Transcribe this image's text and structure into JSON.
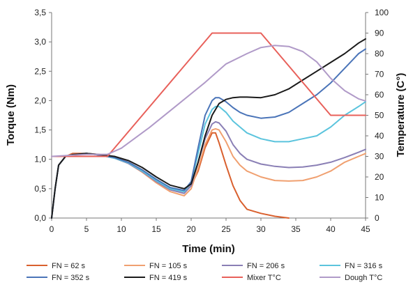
{
  "chart_data": {
    "type": "line",
    "xlabel": "Time (min)",
    "ylabel": "Torque (Nm)",
    "y2label": "Temperature (C°)",
    "xlim": [
      0,
      45
    ],
    "ylim": [
      0,
      3.5
    ],
    "y2lim": [
      0,
      100
    ],
    "x_ticks": [
      "0",
      "5",
      "10",
      "15",
      "20",
      "25",
      "30",
      "35",
      "40",
      "45"
    ],
    "y_ticks": [
      "0,0",
      "0,5",
      "1,0",
      "1,5",
      "2,0",
      "2,5",
      "3,0",
      "3,5"
    ],
    "y2_ticks": [
      "0",
      "10",
      "20",
      "30",
      "40",
      "50",
      "60",
      "70",
      "80",
      "90",
      "100"
    ],
    "grid": false,
    "legend_position": "bottom",
    "series": [
      {
        "name": "FN = 62 s",
        "axis": "left",
        "color": "#d9602e",
        "x": [
          0,
          0.5,
          1,
          2,
          3,
          5,
          7,
          9,
          11,
          13,
          15,
          17,
          19,
          20,
          21,
          22,
          23,
          23.5,
          24,
          25,
          26,
          27,
          28,
          30,
          32,
          34
        ],
        "y": [
          0.0,
          0.5,
          0.9,
          1.05,
          1.1,
          1.1,
          1.08,
          1.04,
          0.95,
          0.82,
          0.65,
          0.5,
          0.45,
          0.55,
          0.8,
          1.2,
          1.45,
          1.45,
          1.28,
          0.9,
          0.55,
          0.3,
          0.15,
          0.08,
          0.03,
          0.0
        ]
      },
      {
        "name": "FN = 105 s",
        "axis": "left",
        "color": "#f0a070",
        "x": [
          0,
          0.5,
          1,
          2,
          3,
          5,
          7,
          9,
          11,
          13,
          15,
          17,
          19,
          20,
          21,
          22,
          23,
          23.5,
          24,
          25,
          26,
          27,
          28,
          30,
          32,
          34,
          36,
          38,
          40,
          42,
          44,
          45
        ],
        "y": [
          0.0,
          0.5,
          0.9,
          1.05,
          1.08,
          1.1,
          1.07,
          1.02,
          0.93,
          0.78,
          0.6,
          0.45,
          0.38,
          0.5,
          0.85,
          1.25,
          1.5,
          1.52,
          1.5,
          1.3,
          1.05,
          0.9,
          0.8,
          0.7,
          0.64,
          0.63,
          0.64,
          0.7,
          0.8,
          0.95,
          1.05,
          1.1
        ]
      },
      {
        "name": "FN = 206 s",
        "axis": "left",
        "color": "#8a7fb5",
        "x": [
          0,
          0.5,
          1,
          2,
          3,
          5,
          7,
          9,
          11,
          13,
          15,
          17,
          19,
          20,
          21,
          22,
          23,
          23.5,
          24,
          25,
          26,
          27,
          28,
          30,
          32,
          34,
          36,
          38,
          40,
          42,
          44,
          45
        ],
        "y": [
          0.0,
          0.5,
          0.9,
          1.05,
          1.08,
          1.1,
          1.07,
          1.02,
          0.93,
          0.79,
          0.62,
          0.48,
          0.42,
          0.55,
          0.95,
          1.35,
          1.6,
          1.64,
          1.62,
          1.48,
          1.25,
          1.1,
          1.0,
          0.92,
          0.88,
          0.86,
          0.87,
          0.9,
          0.95,
          1.03,
          1.12,
          1.17
        ]
      },
      {
        "name": "FN = 316 s",
        "axis": "left",
        "color": "#5bc4dd",
        "x": [
          0,
          0.5,
          1,
          2,
          3,
          5,
          7,
          9,
          11,
          13,
          15,
          17,
          19,
          20,
          21,
          22,
          23,
          23.5,
          24,
          25,
          26,
          27,
          28,
          30,
          32,
          34,
          36,
          38,
          40,
          42,
          44,
          45
        ],
        "y": [
          0.0,
          0.5,
          0.9,
          1.05,
          1.08,
          1.1,
          1.07,
          1.02,
          0.94,
          0.8,
          0.64,
          0.5,
          0.45,
          0.6,
          1.1,
          1.6,
          1.85,
          1.9,
          1.9,
          1.8,
          1.65,
          1.55,
          1.45,
          1.35,
          1.3,
          1.3,
          1.35,
          1.4,
          1.55,
          1.75,
          1.9,
          1.98
        ]
      },
      {
        "name": "FN = 352 s",
        "axis": "left",
        "color": "#4a74b8",
        "x": [
          0,
          0.5,
          1,
          2,
          3,
          5,
          7,
          9,
          11,
          13,
          15,
          17,
          19,
          20,
          21,
          22,
          23,
          23.5,
          24,
          25,
          26,
          27,
          28,
          30,
          32,
          34,
          36,
          38,
          40,
          42,
          44,
          45
        ],
        "y": [
          0.0,
          0.5,
          0.9,
          1.05,
          1.08,
          1.1,
          1.07,
          1.03,
          0.95,
          0.82,
          0.66,
          0.52,
          0.47,
          0.62,
          1.2,
          1.75,
          2.0,
          2.05,
          2.05,
          1.98,
          1.88,
          1.8,
          1.75,
          1.7,
          1.72,
          1.8,
          1.95,
          2.1,
          2.3,
          2.55,
          2.8,
          2.88
        ]
      },
      {
        "name": "FN = 419 s",
        "axis": "left",
        "color": "#1a1a1a",
        "x": [
          0,
          0.5,
          1,
          2,
          3,
          5,
          7,
          9,
          11,
          13,
          15,
          17,
          19,
          20,
          21,
          22,
          23,
          24,
          25,
          26,
          27,
          28,
          30,
          32,
          34,
          36,
          38,
          40,
          42,
          44,
          45
        ],
        "y": [
          0.0,
          0.5,
          0.9,
          1.05,
          1.08,
          1.1,
          1.08,
          1.05,
          0.98,
          0.86,
          0.7,
          0.56,
          0.5,
          0.58,
          0.95,
          1.4,
          1.75,
          1.95,
          2.02,
          2.05,
          2.06,
          2.06,
          2.05,
          2.1,
          2.2,
          2.35,
          2.5,
          2.65,
          2.8,
          2.98,
          3.05
        ]
      },
      {
        "name": "Mixer T°C",
        "axis": "right",
        "color": "#e8605a",
        "x": [
          0,
          8,
          23,
          30,
          40,
          45
        ],
        "y": [
          30,
          30,
          90,
          90,
          50,
          50
        ]
      },
      {
        "name": "Dough T°C",
        "axis": "right",
        "color": "#b09ac8",
        "x": [
          0,
          5,
          8,
          10,
          14,
          18,
          22,
          25,
          28,
          30,
          32,
          34,
          36,
          38,
          40,
          42,
          44,
          45
        ],
        "y": [
          30,
          31,
          31,
          34,
          44,
          55,
          66,
          75,
          80,
          83,
          84,
          83.5,
          81,
          76,
          68,
          62,
          58,
          57
        ]
      }
    ]
  }
}
